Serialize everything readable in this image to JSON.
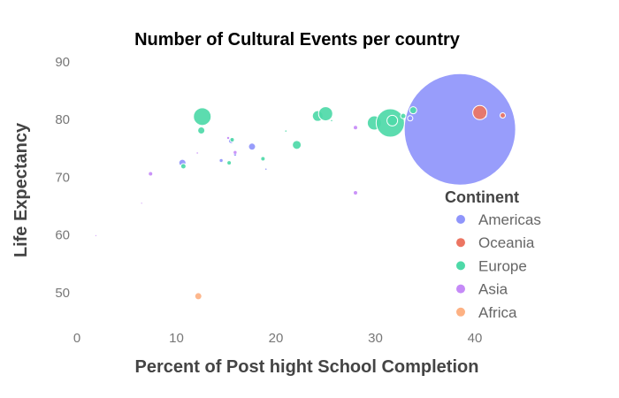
{
  "chart_data": {
    "type": "scatter",
    "title": "Number of Cultural Events per country",
    "xlabel": "Percent of Post hight School  Completion",
    "ylabel": "Life Expectancy",
    "xlim": [
      0,
      50
    ],
    "ylim": [
      44,
      92
    ],
    "xticks": [
      "0",
      "10",
      "20",
      "30",
      "40"
    ],
    "yticks": [
      "50",
      "60",
      "70",
      "80",
      "90"
    ],
    "grid": false,
    "legend": {
      "title": "Continent",
      "placement": "right"
    },
    "colors": {
      "Americas": "#8f95fb",
      "Oceania": "#ec7562",
      "Europe": "#4ed9a8",
      "Asia": "#c58af7",
      "Africa": "#fdb183"
    },
    "series": [
      {
        "name": "Americas",
        "points": [
          {
            "x": 38.5,
            "y": 78.3,
            "r": 63
          },
          {
            "x": 17.6,
            "y": 75.3,
            "r": 4
          },
          {
            "x": 10.6,
            "y": 72.5,
            "r": 4
          },
          {
            "x": 14.5,
            "y": 72.9,
            "r": 2
          },
          {
            "x": 15.5,
            "y": 76.3,
            "r": 3
          },
          {
            "x": 15.9,
            "y": 73.9,
            "r": 1.5
          },
          {
            "x": 19.0,
            "y": 71.4,
            "r": 1
          },
          {
            "x": 33.5,
            "y": 80.2,
            "r": 3
          },
          {
            "x": 41.0,
            "y": 80.6,
            "r": 2
          }
        ]
      },
      {
        "name": "Oceania",
        "points": [
          {
            "x": 40.5,
            "y": 81.2,
            "r": 8
          },
          {
            "x": 42.8,
            "y": 80.7,
            "r": 3
          }
        ]
      },
      {
        "name": "Europe",
        "points": [
          {
            "x": 12.6,
            "y": 80.5,
            "r": 10
          },
          {
            "x": 12.5,
            "y": 78.1,
            "r": 4
          },
          {
            "x": 15.6,
            "y": 76.5,
            "r": 2.5
          },
          {
            "x": 10.7,
            "y": 71.9,
            "r": 3
          },
          {
            "x": 15.3,
            "y": 72.5,
            "r": 2.5
          },
          {
            "x": 18.7,
            "y": 73.2,
            "r": 2.5
          },
          {
            "x": 22.1,
            "y": 75.6,
            "r": 5
          },
          {
            "x": 24.2,
            "y": 80.6,
            "r": 6
          },
          {
            "x": 25.0,
            "y": 81.0,
            "r": 8
          },
          {
            "x": 29.9,
            "y": 79.4,
            "r": 8
          },
          {
            "x": 31.5,
            "y": 79.4,
            "r": 16
          },
          {
            "x": 31.7,
            "y": 79.8,
            "r": 6
          },
          {
            "x": 32.8,
            "y": 80.6,
            "r": 3
          },
          {
            "x": 33.8,
            "y": 81.6,
            "r": 4
          },
          {
            "x": 21.0,
            "y": 78.0,
            "r": 1
          },
          {
            "x": 25.6,
            "y": 79.8,
            "r": 1
          }
        ]
      },
      {
        "name": "Asia",
        "points": [
          {
            "x": 7.4,
            "y": 70.6,
            "r": 2.5
          },
          {
            "x": 28.0,
            "y": 78.6,
            "r": 2.5
          },
          {
            "x": 28.0,
            "y": 67.3,
            "r": 2.5
          },
          {
            "x": 15.9,
            "y": 74.3,
            "r": 2
          },
          {
            "x": 12.1,
            "y": 74.2,
            "r": 1
          },
          {
            "x": 15.2,
            "y": 76.8,
            "r": 1.5
          },
          {
            "x": 1.9,
            "y": 59.9,
            "r": 0.8
          },
          {
            "x": 6.5,
            "y": 65.5,
            "r": 0.8
          }
        ]
      },
      {
        "name": "Africa",
        "points": [
          {
            "x": 12.2,
            "y": 49.4,
            "r": 4
          }
        ]
      }
    ]
  }
}
